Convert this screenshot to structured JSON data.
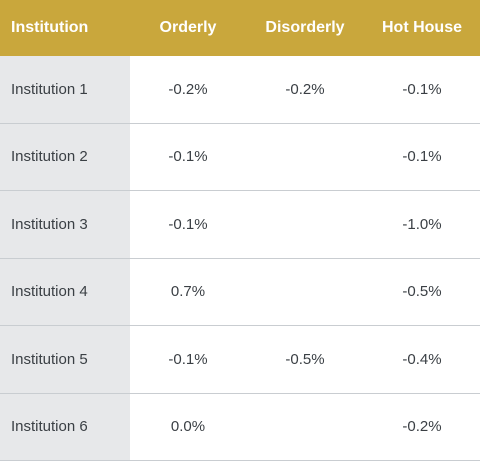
{
  "table": {
    "headers": [
      "Institution",
      "Orderly",
      "Disorderly",
      "Hot House"
    ],
    "rows": [
      {
        "institution": "Institution 1",
        "orderly": "-0.2%",
        "disorderly": "-0.2%",
        "hot_house": "-0.1%"
      },
      {
        "institution": "Institution 2",
        "orderly": "-0.1%",
        "disorderly": "",
        "hot_house": "-0.1%"
      },
      {
        "institution": "Institution 3",
        "orderly": "-0.1%",
        "disorderly": "",
        "hot_house": "-1.0%"
      },
      {
        "institution": "Institution 4",
        "orderly": "0.7%",
        "disorderly": "",
        "hot_house": "-0.5%"
      },
      {
        "institution": "Institution 5",
        "orderly": "-0.1%",
        "disorderly": "-0.5%",
        "hot_house": "-0.4%"
      },
      {
        "institution": "Institution 6",
        "orderly": "0.0%",
        "disorderly": "",
        "hot_house": "-0.2%"
      }
    ]
  },
  "colors": {
    "header_bg": "#c9a73c",
    "header_text": "#ffffff",
    "first_col_bg": "#e7e8ea",
    "row_divider": "#c9cdd1",
    "body_text": "#3a3f44"
  }
}
